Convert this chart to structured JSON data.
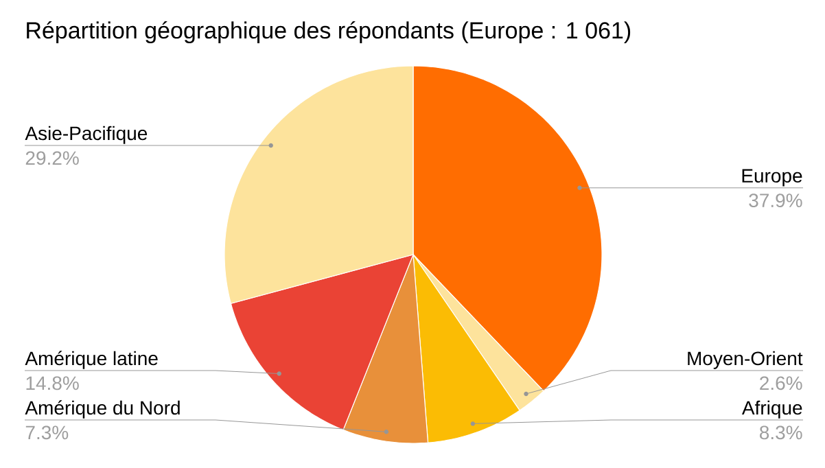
{
  "chart_data": {
    "type": "pie",
    "title": "Répartition géographique des répondants (Europe : 1 061)",
    "categories": [
      "Europe",
      "Moyen-Orient",
      "Afrique",
      "Amérique du Nord",
      "Amérique latine",
      "Asie-Pacifique"
    ],
    "values": [
      37.9,
      2.6,
      8.3,
      7.3,
      14.8,
      29.2
    ],
    "value_labels": [
      "37.9%",
      "2.6%",
      "8.3%",
      "7.3%",
      "14.8%",
      "29.2%"
    ],
    "colors": [
      "#ff6d01",
      "#fde39c",
      "#fbbc04",
      "#e8903a",
      "#ea4335",
      "#fde39c"
    ]
  }
}
